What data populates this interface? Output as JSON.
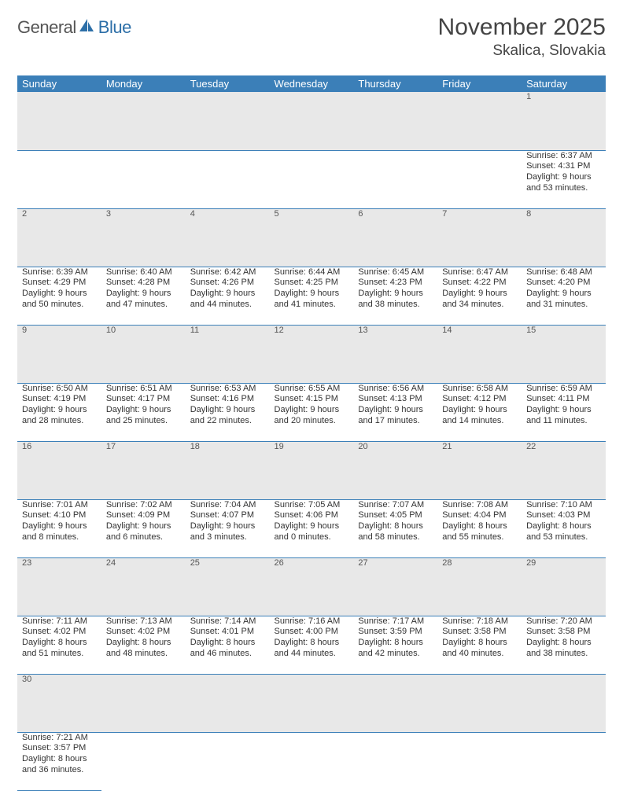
{
  "logo": {
    "word1": "General",
    "word2": "Blue"
  },
  "title": "November 2025",
  "subtitle": "Skalica, Slovakia",
  "colors": {
    "header_bg": "#3b7fb8",
    "header_text": "#ffffff",
    "daynum_bg": "#e8e8e8",
    "row_border": "#3b7fb8",
    "text": "#333333"
  },
  "days_of_week": [
    "Sunday",
    "Monday",
    "Tuesday",
    "Wednesday",
    "Thursday",
    "Friday",
    "Saturday"
  ],
  "days": {
    "1": {
      "sunrise": "6:37 AM",
      "sunset": "4:31 PM",
      "daylight": "9 hours and 53 minutes."
    },
    "2": {
      "sunrise": "6:39 AM",
      "sunset": "4:29 PM",
      "daylight": "9 hours and 50 minutes."
    },
    "3": {
      "sunrise": "6:40 AM",
      "sunset": "4:28 PM",
      "daylight": "9 hours and 47 minutes."
    },
    "4": {
      "sunrise": "6:42 AM",
      "sunset": "4:26 PM",
      "daylight": "9 hours and 44 minutes."
    },
    "5": {
      "sunrise": "6:44 AM",
      "sunset": "4:25 PM",
      "daylight": "9 hours and 41 minutes."
    },
    "6": {
      "sunrise": "6:45 AM",
      "sunset": "4:23 PM",
      "daylight": "9 hours and 38 minutes."
    },
    "7": {
      "sunrise": "6:47 AM",
      "sunset": "4:22 PM",
      "daylight": "9 hours and 34 minutes."
    },
    "8": {
      "sunrise": "6:48 AM",
      "sunset": "4:20 PM",
      "daylight": "9 hours and 31 minutes."
    },
    "9": {
      "sunrise": "6:50 AM",
      "sunset": "4:19 PM",
      "daylight": "9 hours and 28 minutes."
    },
    "10": {
      "sunrise": "6:51 AM",
      "sunset": "4:17 PM",
      "daylight": "9 hours and 25 minutes."
    },
    "11": {
      "sunrise": "6:53 AM",
      "sunset": "4:16 PM",
      "daylight": "9 hours and 22 minutes."
    },
    "12": {
      "sunrise": "6:55 AM",
      "sunset": "4:15 PM",
      "daylight": "9 hours and 20 minutes."
    },
    "13": {
      "sunrise": "6:56 AM",
      "sunset": "4:13 PM",
      "daylight": "9 hours and 17 minutes."
    },
    "14": {
      "sunrise": "6:58 AM",
      "sunset": "4:12 PM",
      "daylight": "9 hours and 14 minutes."
    },
    "15": {
      "sunrise": "6:59 AM",
      "sunset": "4:11 PM",
      "daylight": "9 hours and 11 minutes."
    },
    "16": {
      "sunrise": "7:01 AM",
      "sunset": "4:10 PM",
      "daylight": "9 hours and 8 minutes."
    },
    "17": {
      "sunrise": "7:02 AM",
      "sunset": "4:09 PM",
      "daylight": "9 hours and 6 minutes."
    },
    "18": {
      "sunrise": "7:04 AM",
      "sunset": "4:07 PM",
      "daylight": "9 hours and 3 minutes."
    },
    "19": {
      "sunrise": "7:05 AM",
      "sunset": "4:06 PM",
      "daylight": "9 hours and 0 minutes."
    },
    "20": {
      "sunrise": "7:07 AM",
      "sunset": "4:05 PM",
      "daylight": "8 hours and 58 minutes."
    },
    "21": {
      "sunrise": "7:08 AM",
      "sunset": "4:04 PM",
      "daylight": "8 hours and 55 minutes."
    },
    "22": {
      "sunrise": "7:10 AM",
      "sunset": "4:03 PM",
      "daylight": "8 hours and 53 minutes."
    },
    "23": {
      "sunrise": "7:11 AM",
      "sunset": "4:02 PM",
      "daylight": "8 hours and 51 minutes."
    },
    "24": {
      "sunrise": "7:13 AM",
      "sunset": "4:02 PM",
      "daylight": "8 hours and 48 minutes."
    },
    "25": {
      "sunrise": "7:14 AM",
      "sunset": "4:01 PM",
      "daylight": "8 hours and 46 minutes."
    },
    "26": {
      "sunrise": "7:16 AM",
      "sunset": "4:00 PM",
      "daylight": "8 hours and 44 minutes."
    },
    "27": {
      "sunrise": "7:17 AM",
      "sunset": "3:59 PM",
      "daylight": "8 hours and 42 minutes."
    },
    "28": {
      "sunrise": "7:18 AM",
      "sunset": "3:58 PM",
      "daylight": "8 hours and 40 minutes."
    },
    "29": {
      "sunrise": "7:20 AM",
      "sunset": "3:58 PM",
      "daylight": "8 hours and 38 minutes."
    },
    "30": {
      "sunrise": "7:21 AM",
      "sunset": "3:57 PM",
      "daylight": "8 hours and 36 minutes."
    }
  },
  "labels": {
    "sunrise": "Sunrise: ",
    "sunset": "Sunset: ",
    "daylight": "Daylight: "
  },
  "weeks": [
    [
      null,
      null,
      null,
      null,
      null,
      null,
      "1"
    ],
    [
      "2",
      "3",
      "4",
      "5",
      "6",
      "7",
      "8"
    ],
    [
      "9",
      "10",
      "11",
      "12",
      "13",
      "14",
      "15"
    ],
    [
      "16",
      "17",
      "18",
      "19",
      "20",
      "21",
      "22"
    ],
    [
      "23",
      "24",
      "25",
      "26",
      "27",
      "28",
      "29"
    ],
    [
      "30",
      null,
      null,
      null,
      null,
      null,
      null
    ]
  ]
}
